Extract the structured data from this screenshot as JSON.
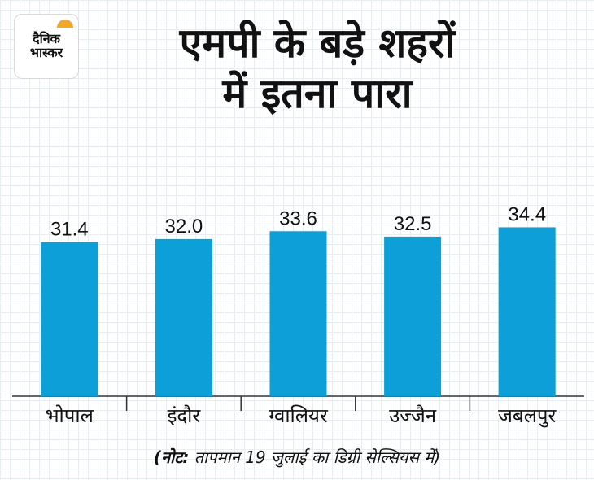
{
  "logo": {
    "line1": "दैनिक",
    "line2": "भास्कर"
  },
  "title": {
    "line1": "एमपी के बड़े शहरों",
    "line2": "में इतना पारा"
  },
  "note": {
    "prefix": "(नोट:",
    "text": " तापमान 19 जुलाई का डिग्री सेल्सियस में)"
  },
  "colors": {
    "bar": "#0d9fd8",
    "axis": "#333333",
    "logo_accent": "#f5a623"
  },
  "chart_data": {
    "type": "bar",
    "categories": [
      "भोपाल",
      "इंदौर",
      "ग्वालियर",
      "उज्जैन",
      "जबलपुर"
    ],
    "values": [
      31.4,
      32.0,
      33.6,
      32.5,
      34.4
    ],
    "value_labels": [
      "31.4",
      "32.0",
      "33.6",
      "32.5",
      "34.4"
    ],
    "title": "एमपी के बड़े शहरों में इतना पारा",
    "xlabel": "",
    "ylabel": "",
    "grid": false,
    "legend": "none"
  }
}
